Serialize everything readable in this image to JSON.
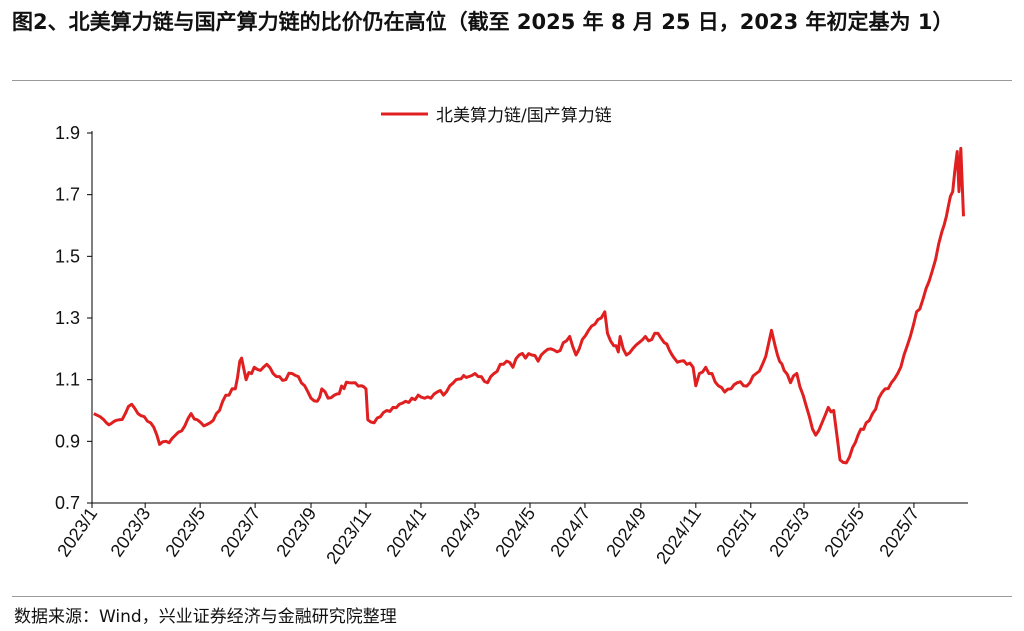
{
  "title": "图2、北美算力链与国产算力链的比价仍在高位（截至 2025 年 8 月 25 日，2023 年初定基为 1）",
  "source": "数据来源：Wind，兴业证券经济与金融研究院整理",
  "colors": {
    "line": "#e02020",
    "axis": "#000000",
    "rule": "#9a9a9a"
  },
  "chart_data": {
    "type": "line",
    "title": "",
    "xlabel": "",
    "ylabel": "",
    "ylim": [
      0.7,
      1.9
    ],
    "y_ticks": [
      "0.7",
      "0.9",
      "1.1",
      "1.3",
      "1.5",
      "1.7",
      "1.9"
    ],
    "x_ticks": [
      "2023/1",
      "2023/3",
      "2023/5",
      "2023/7",
      "2023/9",
      "2023/11",
      "2024/1",
      "2024/3",
      "2024/5",
      "2024/7",
      "2024/9",
      "2024/11",
      "2025/1",
      "2025/3",
      "2025/5",
      "2025/7"
    ],
    "xlim": [
      "2023-01-01",
      "2025-08-25"
    ],
    "grid": false,
    "legend": "top-center",
    "series": [
      {
        "name": "北美算力链/国产算力链",
        "points": [
          [
            "2023-01-03",
            0.99
          ],
          [
            "2023-01-10",
            0.98
          ],
          [
            "2023-01-17",
            0.96
          ],
          [
            "2023-01-31",
            0.97
          ],
          [
            "2023-02-07",
            0.99
          ],
          [
            "2023-02-14",
            1.02
          ],
          [
            "2023-02-21",
            0.99
          ],
          [
            "2023-02-28",
            0.98
          ],
          [
            "2023-03-07",
            0.96
          ],
          [
            "2023-03-14",
            0.92
          ],
          [
            "2023-03-17",
            0.89
          ],
          [
            "2023-03-24",
            0.9
          ],
          [
            "2023-03-31",
            0.91
          ],
          [
            "2023-04-07",
            0.93
          ],
          [
            "2023-04-14",
            0.95
          ],
          [
            "2023-04-21",
            0.99
          ],
          [
            "2023-04-28",
            0.97
          ],
          [
            "2023-05-05",
            0.95
          ],
          [
            "2023-05-12",
            0.96
          ],
          [
            "2023-05-19",
            0.99
          ],
          [
            "2023-05-26",
            1.03
          ],
          [
            "2023-06-02",
            1.05
          ],
          [
            "2023-06-09",
            1.07
          ],
          [
            "2023-06-14",
            1.16
          ],
          [
            "2023-06-16",
            1.17
          ],
          [
            "2023-06-21",
            1.1
          ],
          [
            "2023-06-30",
            1.14
          ],
          [
            "2023-07-07",
            1.13
          ],
          [
            "2023-07-14",
            1.15
          ],
          [
            "2023-07-21",
            1.12
          ],
          [
            "2023-07-28",
            1.11
          ],
          [
            "2023-08-04",
            1.1
          ],
          [
            "2023-08-11",
            1.12
          ],
          [
            "2023-08-18",
            1.11
          ],
          [
            "2023-08-25",
            1.08
          ],
          [
            "2023-09-01",
            1.04
          ],
          [
            "2023-09-08",
            1.03
          ],
          [
            "2023-09-13",
            1.07
          ],
          [
            "2023-09-20",
            1.04
          ],
          [
            "2023-09-27",
            1.05
          ],
          [
            "2023-10-13",
            1.09
          ],
          [
            "2023-10-20",
            1.09
          ],
          [
            "2023-10-27",
            1.08
          ],
          [
            "2023-11-01",
            1.07
          ],
          [
            "2023-11-03",
            0.97
          ],
          [
            "2023-11-10",
            0.96
          ],
          [
            "2023-11-17",
            0.98
          ],
          [
            "2023-11-24",
            1.0
          ],
          [
            "2023-12-01",
            1.01
          ],
          [
            "2023-12-08",
            1.02
          ],
          [
            "2023-12-15",
            1.03
          ],
          [
            "2023-12-22",
            1.04
          ],
          [
            "2023-12-29",
            1.05
          ],
          [
            "2024-01-05",
            1.04
          ],
          [
            "2024-01-12",
            1.04
          ],
          [
            "2024-01-19",
            1.06
          ],
          [
            "2024-01-26",
            1.05
          ],
          [
            "2024-02-02",
            1.08
          ],
          [
            "2024-02-09",
            1.1
          ],
          [
            "2024-02-23",
            1.11
          ],
          [
            "2024-03-01",
            1.12
          ],
          [
            "2024-03-08",
            1.11
          ],
          [
            "2024-03-15",
            1.09
          ],
          [
            "2024-03-22",
            1.12
          ],
          [
            "2024-03-29",
            1.15
          ],
          [
            "2024-04-05",
            1.16
          ],
          [
            "2024-04-12",
            1.14
          ],
          [
            "2024-04-19",
            1.18
          ],
          [
            "2024-04-26",
            1.17
          ],
          [
            "2024-05-03",
            1.18
          ],
          [
            "2024-05-10",
            1.16
          ],
          [
            "2024-05-17",
            1.19
          ],
          [
            "2024-05-24",
            1.2
          ],
          [
            "2024-05-31",
            1.19
          ],
          [
            "2024-06-07",
            1.22
          ],
          [
            "2024-06-14",
            1.24
          ],
          [
            "2024-06-21",
            1.18
          ],
          [
            "2024-06-28",
            1.23
          ],
          [
            "2024-07-05",
            1.26
          ],
          [
            "2024-07-12",
            1.28
          ],
          [
            "2024-07-19",
            1.3
          ],
          [
            "2024-07-23",
            1.32
          ],
          [
            "2024-07-26",
            1.25
          ],
          [
            "2024-08-02",
            1.21
          ],
          [
            "2024-08-07",
            1.19
          ],
          [
            "2024-08-09",
            1.24
          ],
          [
            "2024-08-16",
            1.18
          ],
          [
            "2024-08-23",
            1.2
          ],
          [
            "2024-08-30",
            1.22
          ],
          [
            "2024-09-06",
            1.24
          ],
          [
            "2024-09-13",
            1.23
          ],
          [
            "2024-09-20",
            1.25
          ],
          [
            "2024-09-27",
            1.22
          ],
          [
            "2024-10-08",
            1.17
          ],
          [
            "2024-10-15",
            1.16
          ],
          [
            "2024-10-22",
            1.15
          ],
          [
            "2024-10-29",
            1.14
          ],
          [
            "2024-11-01",
            1.08
          ],
          [
            "2024-11-05",
            1.12
          ],
          [
            "2024-11-12",
            1.14
          ],
          [
            "2024-11-19",
            1.12
          ],
          [
            "2024-11-26",
            1.08
          ],
          [
            "2024-12-03",
            1.06
          ],
          [
            "2024-12-10",
            1.07
          ],
          [
            "2024-12-17",
            1.09
          ],
          [
            "2024-12-24",
            1.08
          ],
          [
            "2024-12-31",
            1.09
          ],
          [
            "2025-01-07",
            1.12
          ],
          [
            "2025-01-14",
            1.15
          ],
          [
            "2025-01-21",
            1.22
          ],
          [
            "2025-01-24",
            1.26
          ],
          [
            "2025-01-28",
            1.21
          ],
          [
            "2025-02-07",
            1.13
          ],
          [
            "2025-02-14",
            1.09
          ],
          [
            "2025-02-21",
            1.12
          ],
          [
            "2025-02-28",
            1.05
          ],
          [
            "2025-03-07",
            0.98
          ],
          [
            "2025-03-14",
            0.92
          ],
          [
            "2025-03-21",
            0.96
          ],
          [
            "2025-03-28",
            1.01
          ],
          [
            "2025-04-03",
            1.0
          ],
          [
            "2025-04-07",
            0.91
          ],
          [
            "2025-04-10",
            0.84
          ],
          [
            "2025-04-17",
            0.83
          ],
          [
            "2025-04-24",
            0.88
          ],
          [
            "2025-04-30",
            0.92
          ],
          [
            "2025-05-09",
            0.96
          ],
          [
            "2025-05-16",
            0.99
          ],
          [
            "2025-05-23",
            1.04
          ],
          [
            "2025-05-30",
            1.07
          ],
          [
            "2025-06-06",
            1.09
          ],
          [
            "2025-06-13",
            1.12
          ],
          [
            "2025-06-20",
            1.18
          ],
          [
            "2025-06-27",
            1.24
          ],
          [
            "2025-07-04",
            1.32
          ],
          [
            "2025-07-11",
            1.36
          ],
          [
            "2025-07-18",
            1.42
          ],
          [
            "2025-07-25",
            1.49
          ],
          [
            "2025-08-01",
            1.58
          ],
          [
            "2025-08-06",
            1.63
          ],
          [
            "2025-08-08",
            1.66
          ],
          [
            "2025-08-13",
            1.71
          ],
          [
            "2025-08-18",
            1.84
          ],
          [
            "2025-08-20",
            1.71
          ],
          [
            "2025-08-22",
            1.85
          ],
          [
            "2025-08-25",
            1.63
          ]
        ]
      }
    ]
  }
}
